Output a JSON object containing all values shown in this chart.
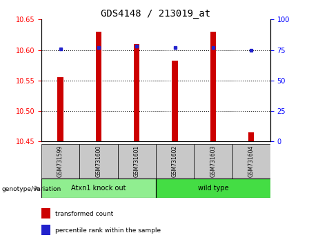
{
  "title": "GDS4148 / 213019_at",
  "samples": [
    "GSM731599",
    "GSM731600",
    "GSM731601",
    "GSM731602",
    "GSM731603",
    "GSM731604"
  ],
  "red_values": [
    10.555,
    10.63,
    10.61,
    10.582,
    10.63,
    10.465
  ],
  "blue_values": [
    76,
    77,
    78,
    77,
    77,
    75
  ],
  "ylim_left": [
    10.45,
    10.65
  ],
  "ylim_right": [
    0,
    100
  ],
  "yticks_left": [
    10.45,
    10.5,
    10.55,
    10.6,
    10.65
  ],
  "yticks_right": [
    0,
    25,
    50,
    75,
    100
  ],
  "hlines": [
    10.5,
    10.55,
    10.6
  ],
  "groups": [
    {
      "label": "Atxn1 knock out",
      "start": 0,
      "end": 2,
      "color": "#90EE90"
    },
    {
      "label": "wild type",
      "start": 3,
      "end": 5,
      "color": "#44DD44"
    }
  ],
  "group_label": "genotype/variation",
  "legend_red": "transformed count",
  "legend_blue": "percentile rank within the sample",
  "bar_color": "#CC0000",
  "dot_color": "#2222CC",
  "background_sample": "#C8C8C8",
  "bar_width": 0.15
}
